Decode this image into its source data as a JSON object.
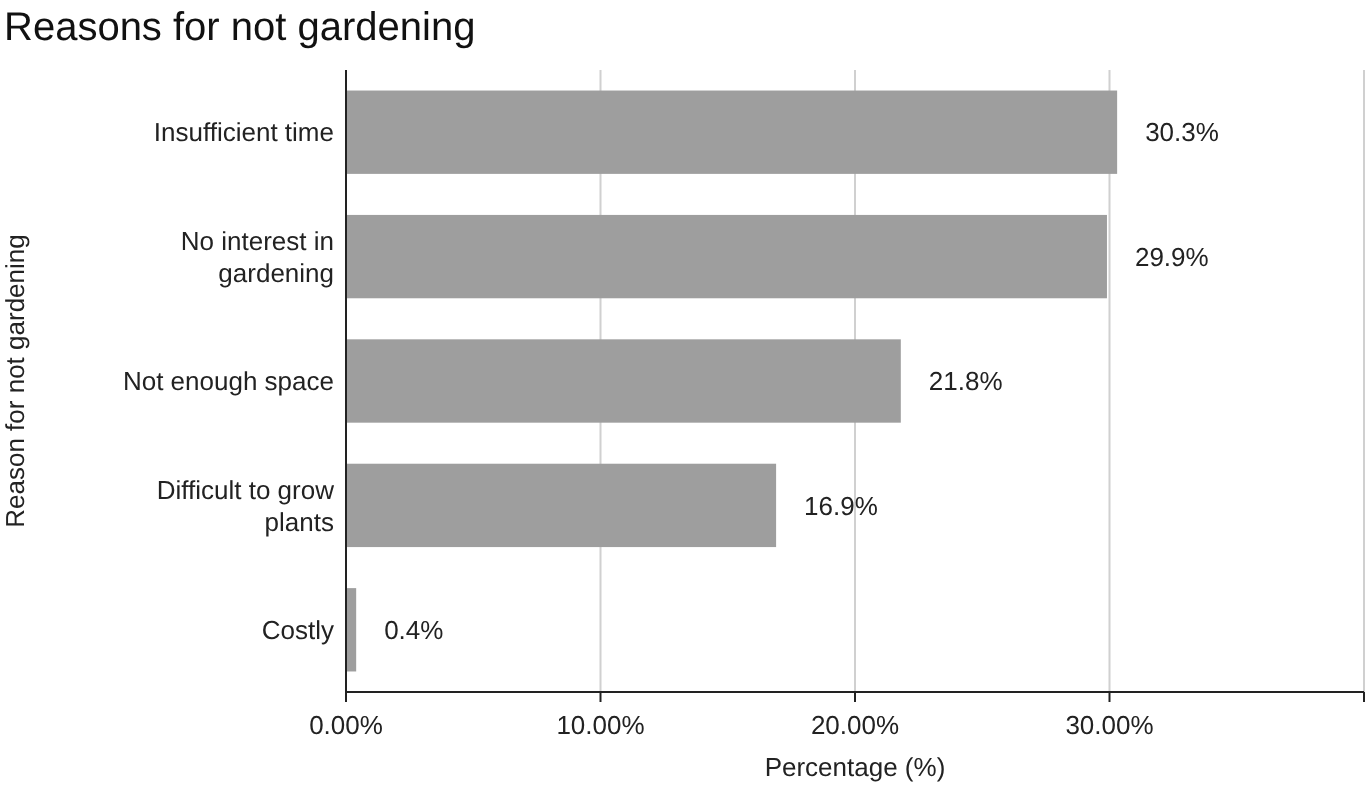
{
  "chart_data": {
    "type": "bar",
    "orientation": "horizontal",
    "title": "Reasons for not gardening",
    "xlabel": "Percentage (%)",
    "ylabel": "Reason for not gardening",
    "categories": [
      "Insufficient time",
      "No interest in gardening",
      "Not enough space",
      "Difficult to grow plants",
      "Costly"
    ],
    "values": [
      30.3,
      29.9,
      21.8,
      16.9,
      0.4
    ],
    "value_labels": [
      "30.3%",
      "29.9%",
      "21.8%",
      "16.9%",
      "0.4%"
    ],
    "color": "#9e9e9e",
    "xlim": [
      0,
      40
    ],
    "xticks": [
      {
        "value": 0,
        "label": "0.00%"
      },
      {
        "value": 10,
        "label": "10.00%"
      },
      {
        "value": 20,
        "label": "20.00%"
      },
      {
        "value": 30,
        "label": "30.00%"
      },
      {
        "value": 40,
        "label": null
      }
    ],
    "grid": "x"
  }
}
